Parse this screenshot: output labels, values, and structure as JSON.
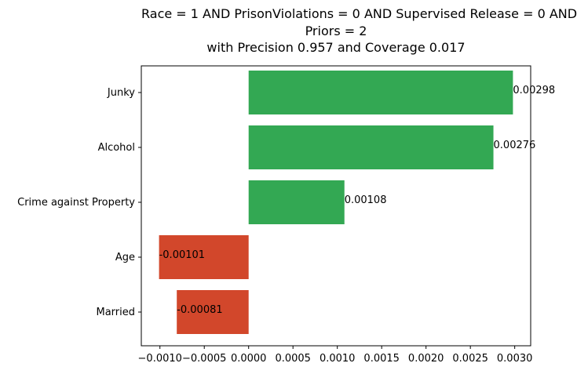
{
  "chart_data": {
    "type": "bar",
    "orientation": "horizontal",
    "title_lines": [
      "Race = 1 AND PrisonViolations = 0 AND Supervised Release = 0 AND",
      "Priors = 2",
      "with Precision 0.957 and Coverage 0.017"
    ],
    "categories": [
      "Junky",
      "Alcohol",
      "Crime against Property",
      "Age",
      "Married"
    ],
    "values": [
      0.00298,
      0.00276,
      0.00108,
      -0.00101,
      -0.00081
    ],
    "value_labels": [
      "0.00298",
      "0.00276",
      "0.00108",
      "-0.00101",
      "-0.00081"
    ],
    "xlim": [
      -0.00121,
      0.00318
    ],
    "xticks": [
      -0.001,
      -0.0005,
      0.0,
      0.0005,
      0.001,
      0.0015,
      0.002,
      0.0025,
      0.003
    ],
    "xtick_labels": [
      "−0.0010",
      "−0.0005",
      "0.0000",
      "0.0005",
      "0.0010",
      "0.0015",
      "0.0020",
      "0.0025",
      "0.0030"
    ],
    "positive_color": "#33a853",
    "negative_color": "#d2472b",
    "grid": false,
    "xlabel": "",
    "ylabel": ""
  }
}
